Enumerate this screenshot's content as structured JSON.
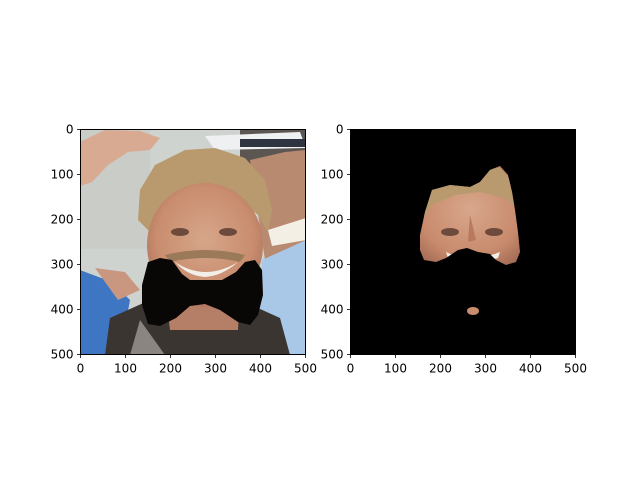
{
  "chart_data": [
    {
      "type": "image",
      "title": "",
      "xlabel": "",
      "ylabel": "",
      "xlim": [
        0,
        500
      ],
      "ylim": [
        500,
        0
      ],
      "xticks": [
        0,
        100,
        200,
        300,
        400,
        500
      ],
      "yticks": [
        0,
        100,
        200,
        300,
        400,
        500
      ],
      "content": "photo-with-black-bowtie-mask"
    },
    {
      "type": "image",
      "title": "",
      "xlabel": "",
      "ylabel": "",
      "xlim": [
        0,
        500
      ],
      "ylim": [
        500,
        0
      ],
      "xticks": [
        0,
        100,
        200,
        300,
        400,
        500
      ],
      "yticks": [
        0,
        100,
        200,
        300,
        400,
        500
      ],
      "content": "masked-face-on-black-background"
    }
  ]
}
